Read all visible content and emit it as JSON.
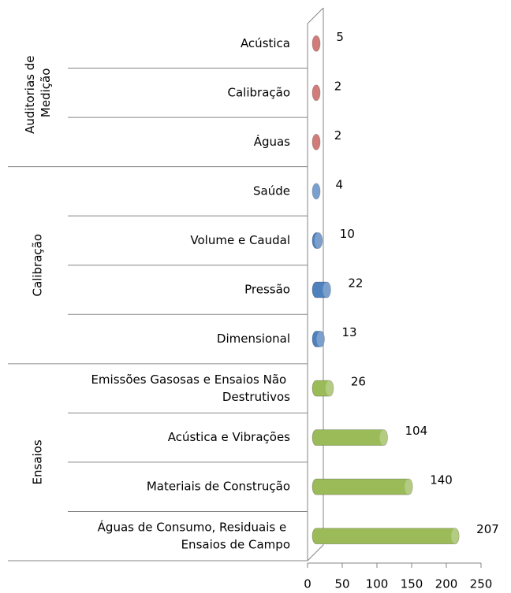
{
  "chart_data": {
    "type": "bar",
    "groups": [
      {
        "name": "Auditorias de Medição",
        "color": "#c0504d",
        "categories": [
          "Acústica",
          "Calibração",
          "Águas"
        ],
        "values": [
          5,
          2,
          2
        ]
      },
      {
        "name": "Calibração",
        "color": "#4f81bd",
        "categories": [
          "Saúde",
          "Volume e Caudal",
          "Pressão",
          "Dimensional"
        ],
        "values": [
          4,
          10,
          22,
          13
        ]
      },
      {
        "name": "Ensaios",
        "color": "#9bbb59",
        "categories": [
          "Emissões Gasosas e Ensaios Não Destrutivos",
          "Acústica e Vibrações",
          "Materiais de Construção",
          "Águas de Consumo, Residuais e Ensaios de Campo"
        ],
        "values": [
          26,
          104,
          140,
          207
        ]
      }
    ],
    "xlim": [
      0,
      250
    ],
    "xticks": [
      0,
      50,
      100,
      150,
      200,
      250
    ]
  }
}
